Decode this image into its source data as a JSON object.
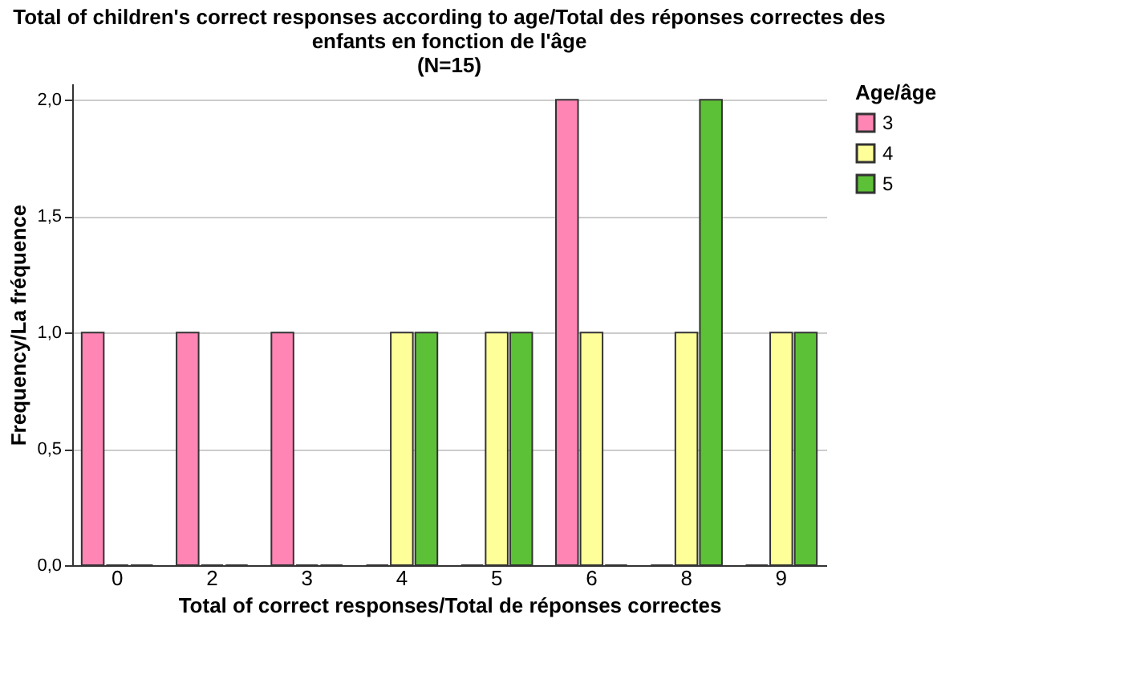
{
  "chart_data": {
    "type": "bar",
    "title": [
      "Total of children's correct responses according to age/Total des réponses correctes des",
      "enfants en fonction de l'âge",
      "(N=15)"
    ],
    "xlabel": "Total of correct responses/Total de réponses correctes",
    "ylabel": "Frequency/La fréquence",
    "legend_title": "Age/âge",
    "categories": [
      "0",
      "2",
      "3",
      "4",
      "5",
      "6",
      "8",
      "9"
    ],
    "series": [
      {
        "name": "3",
        "color": "#fe85b4",
        "values": [
          1,
          1,
          1,
          0,
          0,
          2,
          0,
          0
        ]
      },
      {
        "name": "4",
        "color": "#ffff99",
        "values": [
          0,
          0,
          0,
          1,
          1,
          1,
          1,
          1
        ]
      },
      {
        "name": "5",
        "color": "#5dc137",
        "values": [
          0,
          0,
          0,
          1,
          1,
          0,
          2,
          1
        ]
      }
    ],
    "ylim": [
      0,
      2.07
    ],
    "yticks": [
      {
        "value": 0,
        "label": "0,0"
      },
      {
        "value": 0.5,
        "label": "0,5"
      },
      {
        "value": 1,
        "label": "1,0"
      },
      {
        "value": 1.5,
        "label": "1,5"
      },
      {
        "value": 2,
        "label": "2,0"
      }
    ],
    "grid": "y",
    "legend": "top right"
  }
}
